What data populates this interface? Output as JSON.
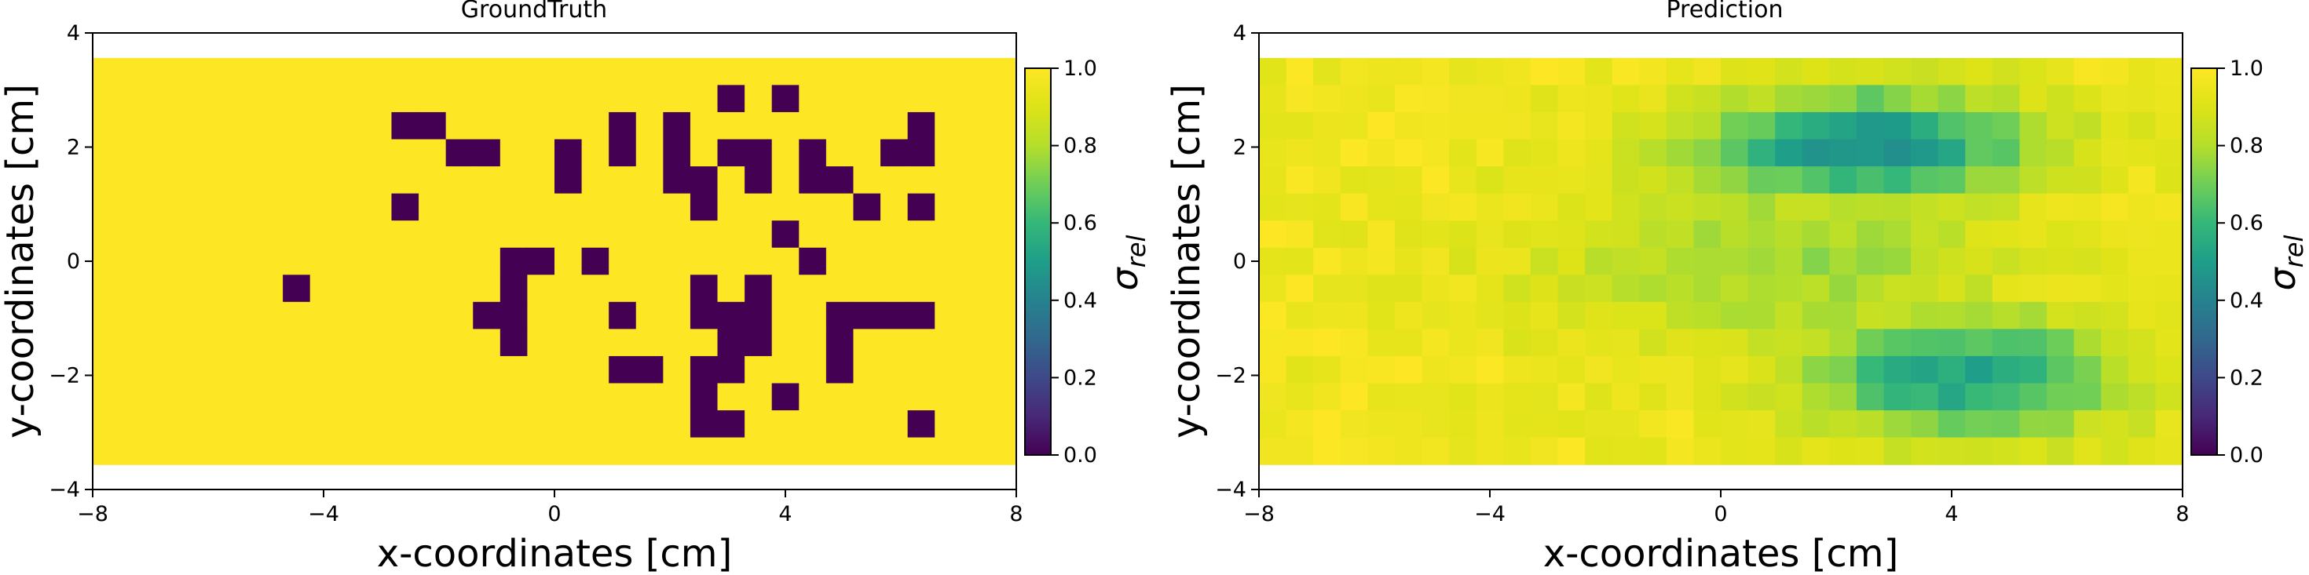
{
  "chart_data": [
    {
      "type": "heatmap",
      "title": "GroundTruth",
      "xlabel": "x-coordinates [cm]",
      "ylabel": "y-coordinates [cm]",
      "xlim": [
        -8,
        8
      ],
      "ylim": [
        -4,
        4
      ],
      "xticks": [
        -8,
        -4,
        0,
        4,
        8
      ],
      "yticks": [
        -4,
        -2,
        0,
        2,
        4
      ],
      "xtick_labels": [
        "−8",
        "−4",
        "0",
        "4",
        "8"
      ],
      "ytick_labels": [
        "−4",
        "−2",
        "0",
        "2",
        "4"
      ],
      "extent": [
        -8,
        8,
        -3.5625,
        3.5625
      ],
      "grid_cols": 34,
      "grid_rows": 15,
      "colormap": "viridis",
      "colorbar": {
        "label": "σrel",
        "range": [
          0,
          1
        ],
        "ticks": [
          "0.0",
          "0.2",
          "0.4",
          "0.6",
          "0.8",
          "1.0"
        ]
      },
      "background_value": 1.0,
      "cells": [
        [
          11,
          2,
          0
        ],
        [
          12,
          2,
          0
        ],
        [
          13,
          3,
          0
        ],
        [
          14,
          3,
          0
        ],
        [
          11,
          5,
          0
        ],
        [
          17,
          3,
          0
        ],
        [
          17,
          4,
          0
        ],
        [
          19,
          2,
          0
        ],
        [
          19,
          3,
          0
        ],
        [
          21,
          2,
          0
        ],
        [
          21,
          3,
          0
        ],
        [
          21,
          4,
          0
        ],
        [
          22,
          4,
          0
        ],
        [
          22,
          5,
          0
        ],
        [
          23,
          3,
          0
        ],
        [
          24,
          3,
          0
        ],
        [
          24,
          4,
          0
        ],
        [
          23,
          1,
          0
        ],
        [
          25,
          1,
          0
        ],
        [
          26,
          3,
          0
        ],
        [
          26,
          4,
          0
        ],
        [
          27,
          4,
          0
        ],
        [
          28,
          5,
          0
        ],
        [
          29,
          3,
          0
        ],
        [
          30,
          3,
          0
        ],
        [
          30,
          2,
          0
        ],
        [
          30,
          5,
          0
        ],
        [
          25,
          6,
          0
        ],
        [
          7,
          8,
          0
        ],
        [
          15,
          7,
          0
        ],
        [
          16,
          7,
          0
        ],
        [
          15,
          8,
          0
        ],
        [
          14,
          9,
          0
        ],
        [
          15,
          9,
          0
        ],
        [
          15,
          10,
          0
        ],
        [
          18,
          7,
          0
        ],
        [
          19,
          9,
          0
        ],
        [
          19,
          11,
          0
        ],
        [
          20,
          11,
          0
        ],
        [
          22,
          8,
          0
        ],
        [
          22,
          9,
          0
        ],
        [
          23,
          9,
          0
        ],
        [
          24,
          8,
          0
        ],
        [
          24,
          9,
          0
        ],
        [
          23,
          10,
          0
        ],
        [
          24,
          10,
          0
        ],
        [
          22,
          11,
          0
        ],
        [
          23,
          11,
          0
        ],
        [
          22,
          12,
          0
        ],
        [
          22,
          13,
          0
        ],
        [
          23,
          13,
          0
        ],
        [
          26,
          7,
          0
        ],
        [
          27,
          9,
          0
        ],
        [
          28,
          9,
          0
        ],
        [
          29,
          9,
          0
        ],
        [
          30,
          9,
          0
        ],
        [
          27,
          10,
          0
        ],
        [
          27,
          11,
          0
        ],
        [
          25,
          12,
          0
        ],
        [
          30,
          13,
          0
        ]
      ]
    },
    {
      "type": "heatmap",
      "title": "Prediction",
      "xlabel": "x-coordinates [cm]",
      "ylabel": "y-coordinates [cm]",
      "xlim": [
        -8,
        8
      ],
      "ylim": [
        -4,
        4
      ],
      "xticks": [
        -8,
        -4,
        0,
        4,
        8
      ],
      "yticks": [
        -4,
        -2,
        0,
        2,
        4
      ],
      "xtick_labels": [
        "−8",
        "−4",
        "0",
        "4",
        "8"
      ],
      "ytick_labels": [
        "−4",
        "−2",
        "0",
        "2",
        "4"
      ],
      "extent": [
        -8,
        8,
        -3.5625,
        3.5625
      ],
      "grid_cols": 34,
      "grid_rows": 15,
      "colormap": "viridis",
      "colorbar": {
        "label": "σrel",
        "range": [
          0,
          1
        ],
        "ticks": [
          "0.0",
          "0.2",
          "0.4",
          "0.6",
          "0.8",
          "1.0"
        ]
      },
      "value_field": {
        "baseline": 0.96,
        "regions": [
          {
            "center": [
              2.5,
              2.0
            ],
            "spread": [
              3.0,
              1.0
            ],
            "min_value": 0.45
          },
          {
            "center": [
              4.2,
              -2.0
            ],
            "spread": [
              2.8,
              1.1
            ],
            "min_value": 0.52
          },
          {
            "center": [
              1.0,
              0.0
            ],
            "spread": [
              4.0,
              1.6
            ],
            "min_value": 0.75
          }
        ]
      }
    }
  ]
}
